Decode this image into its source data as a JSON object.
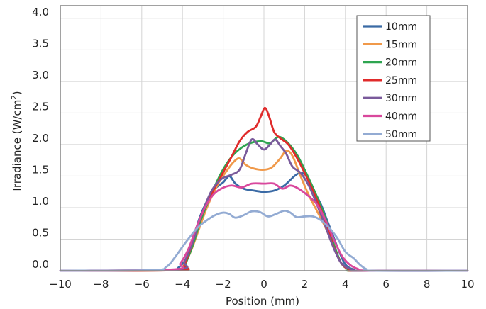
{
  "chart_data": {
    "type": "line",
    "xlabel": "Position (mm)",
    "ylabel_main": "Irradiance (W/cm",
    "ylabel_sup": "2",
    "ylabel_end": ")",
    "xlim": [
      -10,
      10
    ],
    "ylim": [
      0,
      4.2
    ],
    "xticks": [
      -10,
      -8,
      -6,
      -4,
      -2,
      0,
      2,
      4,
      6,
      8,
      10
    ],
    "xtick_labels": [
      "−10",
      "−8",
      "−6",
      "−4",
      "−2",
      "0",
      "2",
      "4",
      "6",
      "8",
      "10"
    ],
    "yticks": [
      0,
      0.5,
      1,
      1.5,
      2,
      2.5,
      3,
      3.5,
      4
    ],
    "ytick_labels": [
      "0.0",
      "0.5",
      "1.0",
      "1.5",
      "2.0",
      "2.5",
      "3.0",
      "3.5",
      "4.0"
    ],
    "grid": true,
    "legend_position": "top-right",
    "series": [
      {
        "name": "10mm",
        "color": "#3a6aa5",
        "points": [
          [
            -10,
            0
          ],
          [
            -4.6,
            0.01
          ],
          [
            -4.2,
            0.05
          ],
          [
            -3.8,
            0.2
          ],
          [
            -3.5,
            0.45
          ],
          [
            -3.2,
            0.8
          ],
          [
            -2.8,
            1.1
          ],
          [
            -2.4,
            1.3
          ],
          [
            -2,
            1.4
          ],
          [
            -1.7,
            1.5
          ],
          [
            -1.4,
            1.38
          ],
          [
            -1,
            1.3
          ],
          [
            -0.5,
            1.27
          ],
          [
            0,
            1.25
          ],
          [
            0.5,
            1.27
          ],
          [
            1,
            1.35
          ],
          [
            1.5,
            1.5
          ],
          [
            1.8,
            1.55
          ],
          [
            2.1,
            1.5
          ],
          [
            2.4,
            1.3
          ],
          [
            2.8,
            1.05
          ],
          [
            3.1,
            0.8
          ],
          [
            3.4,
            0.55
          ],
          [
            3.7,
            0.3
          ],
          [
            4.0,
            0.1
          ],
          [
            4.4,
            0.02
          ],
          [
            5,
            0
          ],
          [
            10,
            0
          ]
        ]
      },
      {
        "name": "15mm",
        "color": "#f0994a",
        "points": [
          [
            -10,
            0
          ],
          [
            -4.3,
            0.01
          ],
          [
            -4.0,
            0.05
          ],
          [
            -3.6,
            0.3
          ],
          [
            -3.2,
            0.65
          ],
          [
            -2.8,
            1.0
          ],
          [
            -2.3,
            1.35
          ],
          [
            -1.9,
            1.55
          ],
          [
            -1.5,
            1.72
          ],
          [
            -1.2,
            1.78
          ],
          [
            -0.9,
            1.68
          ],
          [
            -0.5,
            1.62
          ],
          [
            0,
            1.6
          ],
          [
            0.4,
            1.64
          ],
          [
            0.8,
            1.78
          ],
          [
            1.1,
            1.9
          ],
          [
            1.4,
            1.82
          ],
          [
            1.8,
            1.5
          ],
          [
            2.2,
            1.2
          ],
          [
            2.6,
            0.95
          ],
          [
            3.0,
            0.7
          ],
          [
            3.4,
            0.4
          ],
          [
            3.8,
            0.12
          ],
          [
            4.2,
            0.02
          ],
          [
            4.6,
            0
          ],
          [
            10,
            0
          ]
        ]
      },
      {
        "name": "20mm",
        "color": "#2ea550",
        "points": [
          [
            -10,
            0
          ],
          [
            -4.2,
            0.01
          ],
          [
            -3.9,
            0.08
          ],
          [
            -3.5,
            0.4
          ],
          [
            -3.1,
            0.8
          ],
          [
            -2.6,
            1.2
          ],
          [
            -2.1,
            1.55
          ],
          [
            -1.6,
            1.8
          ],
          [
            -1.1,
            1.95
          ],
          [
            -0.6,
            2.03
          ],
          [
            -0.1,
            2.05
          ],
          [
            0.3,
            2.02
          ],
          [
            0.7,
            2.12
          ],
          [
            1.1,
            2.05
          ],
          [
            1.6,
            1.85
          ],
          [
            2.0,
            1.6
          ],
          [
            2.5,
            1.25
          ],
          [
            3.0,
            0.85
          ],
          [
            3.4,
            0.45
          ],
          [
            3.8,
            0.12
          ],
          [
            4.2,
            0.02
          ],
          [
            4.6,
            0
          ],
          [
            10,
            0
          ]
        ]
      },
      {
        "name": "25mm",
        "color": "#e02b2b",
        "points": [
          [
            -10,
            0
          ],
          [
            -4.2,
            0.01
          ],
          [
            -3.9,
            0.1
          ],
          [
            -3.5,
            0.45
          ],
          [
            -3.1,
            0.85
          ],
          [
            -2.6,
            1.2
          ],
          [
            -2.1,
            1.5
          ],
          [
            -1.6,
            1.8
          ],
          [
            -1.2,
            2.05
          ],
          [
            -0.8,
            2.2
          ],
          [
            -0.4,
            2.28
          ],
          [
            -0.15,
            2.45
          ],
          [
            0.05,
            2.58
          ],
          [
            0.25,
            2.45
          ],
          [
            0.5,
            2.2
          ],
          [
            0.8,
            2.1
          ],
          [
            1.2,
            2.0
          ],
          [
            1.6,
            1.8
          ],
          [
            2.0,
            1.55
          ],
          [
            2.5,
            1.2
          ],
          [
            3.0,
            0.8
          ],
          [
            3.4,
            0.4
          ],
          [
            3.8,
            0.12
          ],
          [
            4.2,
            0.02
          ],
          [
            4.7,
            0
          ],
          [
            10,
            0
          ]
        ]
      },
      {
        "name": "30mm",
        "color": "#7a5a9b",
        "points": [
          [
            -10,
            0
          ],
          [
            -4.3,
            0.02
          ],
          [
            -3.9,
            0.15
          ],
          [
            -3.5,
            0.45
          ],
          [
            -3.1,
            0.85
          ],
          [
            -2.6,
            1.25
          ],
          [
            -2.1,
            1.45
          ],
          [
            -1.6,
            1.52
          ],
          [
            -1.2,
            1.6
          ],
          [
            -0.9,
            1.85
          ],
          [
            -0.6,
            2.08
          ],
          [
            -0.3,
            2.0
          ],
          [
            0.0,
            1.92
          ],
          [
            0.3,
            2.0
          ],
          [
            0.55,
            2.08
          ],
          [
            0.8,
            1.98
          ],
          [
            1.1,
            1.85
          ],
          [
            1.4,
            1.65
          ],
          [
            1.8,
            1.55
          ],
          [
            2.2,
            1.35
          ],
          [
            2.6,
            1.05
          ],
          [
            3.0,
            0.72
          ],
          [
            3.4,
            0.38
          ],
          [
            3.8,
            0.12
          ],
          [
            4.3,
            0.02
          ],
          [
            4.8,
            0
          ],
          [
            10,
            0
          ]
        ]
      },
      {
        "name": "40mm",
        "color": "#d9489d",
        "points": [
          [
            -10,
            0
          ],
          [
            -4.5,
            0.02
          ],
          [
            -4.1,
            0.12
          ],
          [
            -3.7,
            0.35
          ],
          [
            -3.3,
            0.7
          ],
          [
            -2.9,
            1.0
          ],
          [
            -2.5,
            1.2
          ],
          [
            -2.1,
            1.3
          ],
          [
            -1.6,
            1.35
          ],
          [
            -1.1,
            1.32
          ],
          [
            -0.6,
            1.38
          ],
          [
            0,
            1.38
          ],
          [
            0.5,
            1.38
          ],
          [
            0.9,
            1.3
          ],
          [
            1.3,
            1.35
          ],
          [
            1.7,
            1.3
          ],
          [
            2.2,
            1.18
          ],
          [
            2.6,
            1.05
          ],
          [
            3.0,
            0.82
          ],
          [
            3.4,
            0.52
          ],
          [
            3.8,
            0.25
          ],
          [
            4.2,
            0.1
          ],
          [
            4.6,
            0.03
          ],
          [
            5.2,
            0
          ],
          [
            10,
            0
          ]
        ]
      },
      {
        "name": "50mm",
        "color": "#93abd3",
        "points": [
          [
            -10,
            0
          ],
          [
            -5.5,
            0.01
          ],
          [
            -4.8,
            0.06
          ],
          [
            -4.4,
            0.2
          ],
          [
            -4.0,
            0.38
          ],
          [
            -3.6,
            0.55
          ],
          [
            -3.2,
            0.7
          ],
          [
            -2.8,
            0.8
          ],
          [
            -2.4,
            0.88
          ],
          [
            -2.0,
            0.92
          ],
          [
            -1.7,
            0.9
          ],
          [
            -1.4,
            0.84
          ],
          [
            -1.0,
            0.88
          ],
          [
            -0.6,
            0.94
          ],
          [
            -0.2,
            0.93
          ],
          [
            0.2,
            0.86
          ],
          [
            0.6,
            0.9
          ],
          [
            1.0,
            0.95
          ],
          [
            1.3,
            0.92
          ],
          [
            1.6,
            0.85
          ],
          [
            2.0,
            0.86
          ],
          [
            2.4,
            0.86
          ],
          [
            2.8,
            0.8
          ],
          [
            3.2,
            0.68
          ],
          [
            3.6,
            0.52
          ],
          [
            4.0,
            0.3
          ],
          [
            4.4,
            0.2
          ],
          [
            4.7,
            0.1
          ],
          [
            5.0,
            0.03
          ],
          [
            5.4,
            0
          ],
          [
            10,
            0
          ]
        ]
      }
    ]
  }
}
